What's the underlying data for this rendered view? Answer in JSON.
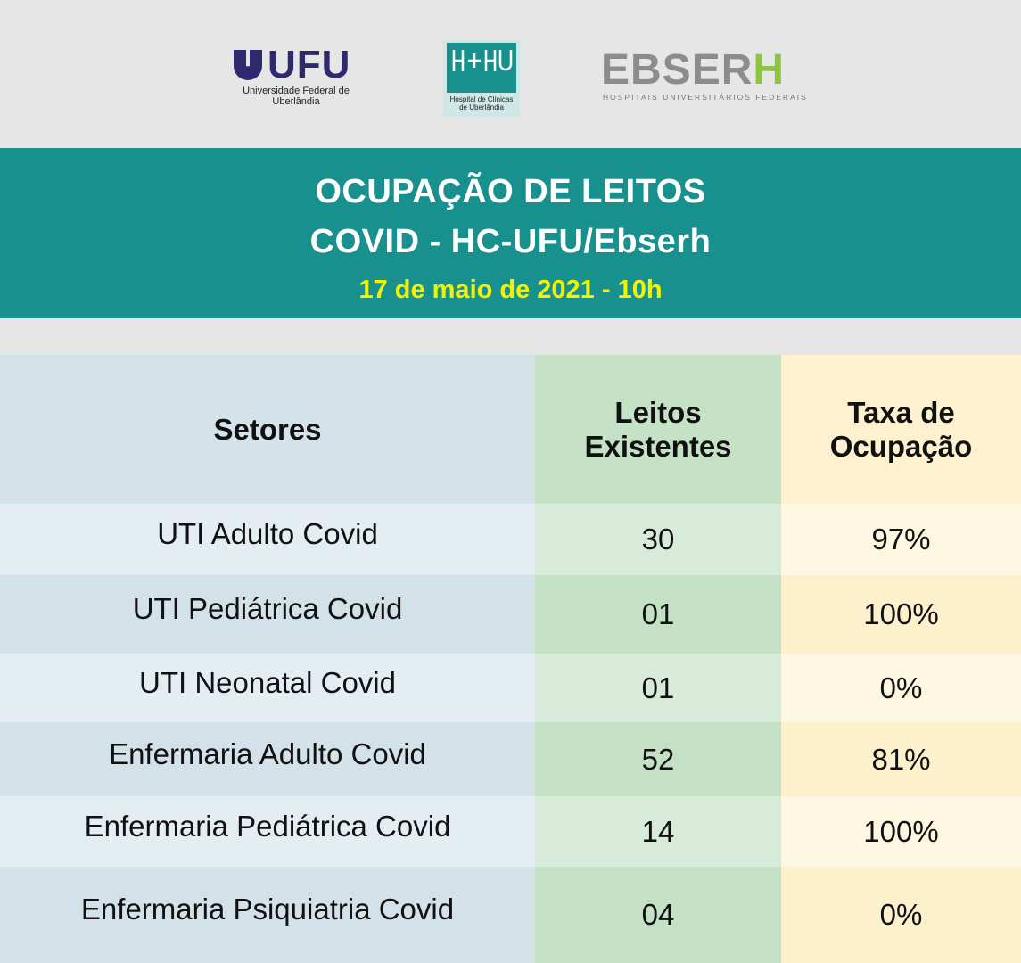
{
  "header": {
    "logos": {
      "ufu": {
        "name": "UFU",
        "caption": [
          "Universidade Federal de",
          "Uberlândia"
        ]
      },
      "hc": {
        "caption": [
          "Hospital de Clínicas",
          "de Uberlândia"
        ]
      },
      "ebserh": {
        "name": "EBSER",
        "name_accent": "H",
        "tagline": "HOSPITAIS UNIVERSITÁRIOS FEDERAIS"
      }
    },
    "title": [
      "OCUPAÇÃO DE LEITOS",
      "COVID - HC-UFU/Ebserh"
    ],
    "date": "17 de maio de 2021 - 10h"
  },
  "table": {
    "columns": [
      [
        "Setores"
      ],
      [
        "Leitos",
        "Existentes"
      ],
      [
        "Taxa de",
        "Ocupação"
      ]
    ],
    "rows": [
      [
        "UTI Adulto Covid",
        "30",
        "97%"
      ],
      [
        "UTI Pediátrica Covid",
        "01",
        "100%"
      ],
      [
        "UTI Neonatal Covid",
        "01",
        "0%"
      ],
      [
        "Enfermaria Adulto Covid",
        "52",
        "81%"
      ],
      [
        "Enfermaria Pediátrica Covid",
        "14",
        "100%"
      ],
      [
        "Enfermaria Psiquiatria Covid",
        "04",
        "0%"
      ]
    ]
  }
}
